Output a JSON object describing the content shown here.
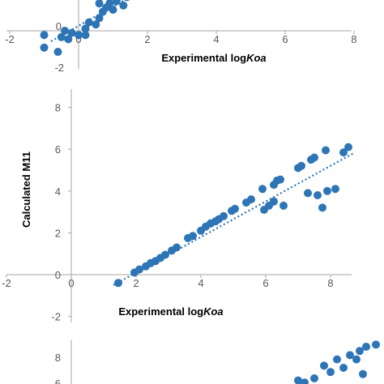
{
  "colors": {
    "point": "#2E75B6",
    "axis": "#A6A6A6",
    "trend": "#2E75B6"
  },
  "chart_data": [
    {
      "type": "scatter",
      "partial": "top (cropped)",
      "xlabel": {
        "text": "Experimental log",
        "italic": "Koa"
      },
      "x_ticks": [
        "-2",
        "0",
        "2",
        "4",
        "6",
        "8"
      ],
      "y_ticks": [
        "0",
        "-2"
      ],
      "xlim": [
        -2,
        8.6
      ],
      "points": [
        {
          "x": -1.0,
          "y": -0.8
        },
        {
          "x": -0.6,
          "y": -1.0
        },
        {
          "x": -1.0,
          "y": -0.2
        },
        {
          "x": -0.5,
          "y": -0.3
        },
        {
          "x": -0.3,
          "y": -0.4
        },
        {
          "x": -0.4,
          "y": 0.0
        },
        {
          "x": -0.2,
          "y": -0.1
        },
        {
          "x": 0.0,
          "y": -0.2
        },
        {
          "x": 0.2,
          "y": 0.1
        },
        {
          "x": 0.2,
          "y": -0.2
        },
        {
          "x": 0.3,
          "y": 0.4
        },
        {
          "x": 0.5,
          "y": 0.3
        },
        {
          "x": 0.6,
          "y": 0.6
        },
        {
          "x": 0.7,
          "y": 0.9
        },
        {
          "x": 0.8,
          "y": 1.1
        },
        {
          "x": 0.9,
          "y": 1.3
        },
        {
          "x": 1.0,
          "y": 1.0
        },
        {
          "x": 1.1,
          "y": 1.4
        },
        {
          "x": 1.3,
          "y": 1.2
        },
        {
          "x": 1.4,
          "y": 1.6
        },
        {
          "x": 1.5,
          "y": 1.9
        },
        {
          "x": 0.6,
          "y": 1.3
        },
        {
          "x": 0.8,
          "y": 1.8
        },
        {
          "x": -0.3,
          "y": 1.9
        },
        {
          "x": 0.1,
          "y": 2.1
        }
      ],
      "trendline": [
        [
          -0.8,
          -0.5
        ],
        [
          1.6,
          1.7
        ]
      ]
    },
    {
      "type": "scatter",
      "xlabel": {
        "text": "Experimental log",
        "italic": "Koa"
      },
      "ylabel": "Calculated M11",
      "x_ticks": [
        "-2",
        "0",
        "2",
        "4",
        "6",
        "8"
      ],
      "y_ticks": [
        "8",
        "6",
        "4",
        "2",
        "0",
        "-2"
      ],
      "xlim": [
        -2,
        9
      ],
      "ylim": [
        -2,
        8.7
      ],
      "points": [
        {
          "x": 1.45,
          "y": -0.4
        },
        {
          "x": 1.95,
          "y": 0.1
        },
        {
          "x": 2.1,
          "y": 0.25
        },
        {
          "x": 2.3,
          "y": 0.4
        },
        {
          "x": 2.45,
          "y": 0.55
        },
        {
          "x": 2.6,
          "y": 0.65
        },
        {
          "x": 2.75,
          "y": 0.8
        },
        {
          "x": 2.9,
          "y": 0.95
        },
        {
          "x": 3.1,
          "y": 1.15
        },
        {
          "x": 3.25,
          "y": 1.3
        },
        {
          "x": 3.6,
          "y": 1.75
        },
        {
          "x": 3.75,
          "y": 1.85
        },
        {
          "x": 4.0,
          "y": 2.1
        },
        {
          "x": 4.15,
          "y": 2.3
        },
        {
          "x": 4.3,
          "y": 2.45
        },
        {
          "x": 4.45,
          "y": 2.55
        },
        {
          "x": 4.55,
          "y": 2.65
        },
        {
          "x": 4.7,
          "y": 2.8
        },
        {
          "x": 4.95,
          "y": 3.05
        },
        {
          "x": 5.05,
          "y": 3.15
        },
        {
          "x": 5.4,
          "y": 3.45
        },
        {
          "x": 5.55,
          "y": 3.6
        },
        {
          "x": 5.9,
          "y": 4.1
        },
        {
          "x": 6.25,
          "y": 4.3
        },
        {
          "x": 6.35,
          "y": 4.5
        },
        {
          "x": 6.45,
          "y": 4.55
        },
        {
          "x": 7.0,
          "y": 5.1
        },
        {
          "x": 7.1,
          "y": 5.2
        },
        {
          "x": 7.4,
          "y": 5.5
        },
        {
          "x": 7.5,
          "y": 5.6
        },
        {
          "x": 7.85,
          "y": 5.95
        },
        {
          "x": 8.4,
          "y": 5.85
        },
        {
          "x": 8.55,
          "y": 6.1
        },
        {
          "x": 5.95,
          "y": 3.1
        },
        {
          "x": 6.1,
          "y": 3.3
        },
        {
          "x": 6.25,
          "y": 3.5
        },
        {
          "x": 6.55,
          "y": 3.3
        },
        {
          "x": 7.3,
          "y": 3.9
        },
        {
          "x": 7.6,
          "y": 3.8
        },
        {
          "x": 7.75,
          "y": 3.2
        },
        {
          "x": 7.9,
          "y": 4.0
        },
        {
          "x": 8.15,
          "y": 4.1
        }
      ],
      "trendline": [
        [
          1.3,
          -0.5
        ],
        [
          8.7,
          5.8
        ]
      ]
    },
    {
      "type": "scatter",
      "partial": "bottom (cropped)",
      "y_ticks": [
        "8",
        "6"
      ],
      "xlim": [
        -2,
        9
      ],
      "points": [
        {
          "x": 7.2,
          "y": 6.8
        },
        {
          "x": 7.5,
          "y": 7.0
        },
        {
          "x": 7.8,
          "y": 7.6
        },
        {
          "x": 8.0,
          "y": 7.3
        },
        {
          "x": 8.2,
          "y": 7.9
        },
        {
          "x": 8.4,
          "y": 7.5
        },
        {
          "x": 8.6,
          "y": 8.1
        },
        {
          "x": 8.9,
          "y": 8.3
        },
        {
          "x": 9.1,
          "y": 8.5
        },
        {
          "x": 9.4,
          "y": 8.6
        },
        {
          "x": 7.0,
          "y": 6.9
        },
        {
          "x": 8.8,
          "y": 7.9
        },
        {
          "x": 9.0,
          "y": 7.2
        }
      ]
    }
  ]
}
